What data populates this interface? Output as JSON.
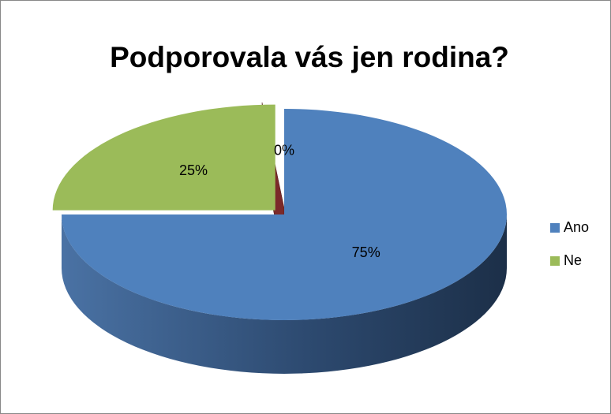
{
  "chart_data": {
    "type": "pie",
    "title": "Podporovala vás jen rodina?",
    "categories": [
      "Ano",
      "Ne",
      null
    ],
    "values": [
      75,
      25,
      0
    ],
    "value_labels": [
      "75%",
      "25%",
      "0%"
    ],
    "colors": [
      "#4f81bd",
      "#9bbb59",
      "#7b2a2a"
    ],
    "legend": "right"
  }
}
